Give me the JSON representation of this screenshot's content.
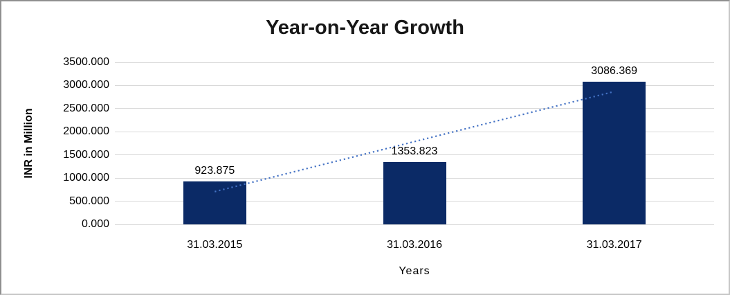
{
  "chart_data": {
    "type": "bar",
    "title": "Year-on-Year Growth",
    "xlabel": "Years",
    "ylabel": "INR in Million",
    "categories": [
      "31.03.2015",
      "31.03.2016",
      "31.03.2017"
    ],
    "values": [
      923.875,
      1353.823,
      3086.369
    ],
    "data_labels": [
      "923.875",
      "1353.823",
      "3086.369"
    ],
    "y_ticks": [
      "0.000",
      "500.000",
      "1000.000",
      "1500.000",
      "2000.000",
      "2500.000",
      "3000.000",
      "3500.000"
    ],
    "ylim": [
      0,
      3500
    ],
    "grid": true,
    "legend_position": "none",
    "colors": {
      "bar": "#0b2a66",
      "gridline": "#d9d9d9",
      "trendline": "#4472c4",
      "title_text": "#171717",
      "tick_text": "#000000"
    },
    "trendline": {
      "type": "linear",
      "style": "dotted"
    }
  }
}
